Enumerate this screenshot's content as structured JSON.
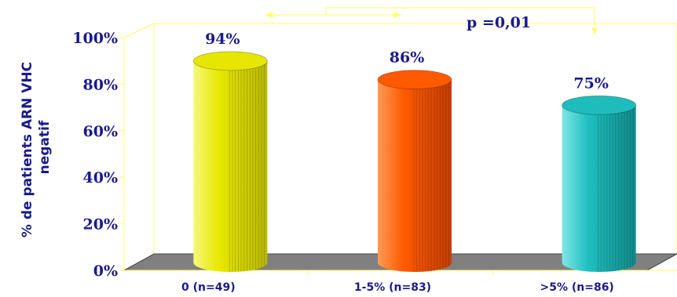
{
  "chart_data": {
    "type": "bar",
    "ylabel_lines": [
      "% de patients ARN VHC",
      "negatif"
    ],
    "xlabel": "",
    "categories": [
      "0 (n=49)",
      "1-5% (n=83)",
      ">5% (n=86)"
    ],
    "values": [
      94,
      86,
      75
    ],
    "data_labels": [
      "94%",
      "86%",
      "75%"
    ],
    "ylim": [
      0,
      100
    ],
    "yticks": [
      0,
      20,
      40,
      60,
      80,
      100
    ],
    "ytick_labels": [
      "0%",
      "20%",
      "40%",
      "60%",
      "80%",
      "100%"
    ],
    "annotation": "p =0,01",
    "colors": [
      "#e6e600",
      "#ff5a00",
      "#1fbcbc"
    ],
    "wall_border_color": "#ffff66",
    "floor_color": "#808080"
  }
}
